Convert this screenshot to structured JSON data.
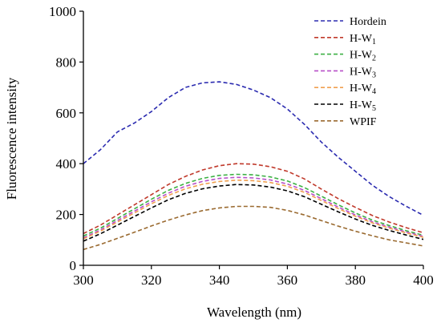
{
  "chart_data": {
    "type": "line",
    "xlabel": "Wavelength (nm)",
    "ylabel": "Fluorescence intensity",
    "xlim": [
      300,
      400
    ],
    "ylim": [
      0,
      1000
    ],
    "xticks": [
      300,
      320,
      340,
      360,
      380,
      400
    ],
    "yticks": [
      0,
      200,
      400,
      600,
      800,
      1000
    ],
    "grid": false,
    "legend_position": "top-right",
    "line_style": "dashed",
    "x": [
      300,
      305,
      310,
      315,
      320,
      325,
      330,
      335,
      340,
      345,
      350,
      355,
      360,
      365,
      370,
      375,
      380,
      385,
      390,
      395,
      400
    ],
    "series": [
      {
        "name": "Hordein",
        "subscript": "",
        "color": "#2b2bb0",
        "values": [
          400,
          455,
          525,
          560,
          605,
          660,
          700,
          718,
          722,
          712,
          690,
          660,
          615,
          555,
          485,
          425,
          370,
          315,
          270,
          232,
          197
        ]
      },
      {
        "name": "H-W",
        "subscript": "1",
        "color": "#c0392b",
        "values": [
          125,
          158,
          198,
          238,
          278,
          318,
          350,
          375,
          392,
          400,
          398,
          388,
          370,
          340,
          300,
          262,
          228,
          196,
          170,
          148,
          128
        ]
      },
      {
        "name": "H-W",
        "subscript": "2",
        "color": "#3cb043",
        "values": [
          115,
          146,
          184,
          222,
          260,
          295,
          322,
          342,
          354,
          358,
          356,
          348,
          332,
          306,
          272,
          238,
          206,
          178,
          156,
          136,
          118
        ]
      },
      {
        "name": "H-W",
        "subscript": "3",
        "color": "#b84fc8",
        "values": [
          108,
          139,
          176,
          213,
          250,
          284,
          311,
          330,
          342,
          346,
          344,
          336,
          320,
          295,
          262,
          229,
          198,
          171,
          150,
          131,
          114
        ]
      },
      {
        "name": "H-W",
        "subscript": "4",
        "color": "#f0a050",
        "values": [
          104,
          134,
          170,
          206,
          242,
          275,
          301,
          319,
          330,
          335,
          333,
          326,
          311,
          287,
          255,
          223,
          193,
          167,
          146,
          127,
          110
        ]
      },
      {
        "name": "H-W",
        "subscript": "5",
        "color": "#000000",
        "values": [
          95,
          124,
          158,
          192,
          226,
          258,
          283,
          301,
          312,
          318,
          316,
          308,
          293,
          270,
          240,
          210,
          182,
          157,
          137,
          119,
          102
        ]
      },
      {
        "name": "WPIF",
        "subscript": "",
        "color": "#9a6a30",
        "values": [
          62,
          82,
          106,
          130,
          155,
          178,
          198,
          215,
          226,
          232,
          232,
          228,
          216,
          198,
          176,
          154,
          134,
          116,
          100,
          88,
          76
        ]
      }
    ]
  }
}
